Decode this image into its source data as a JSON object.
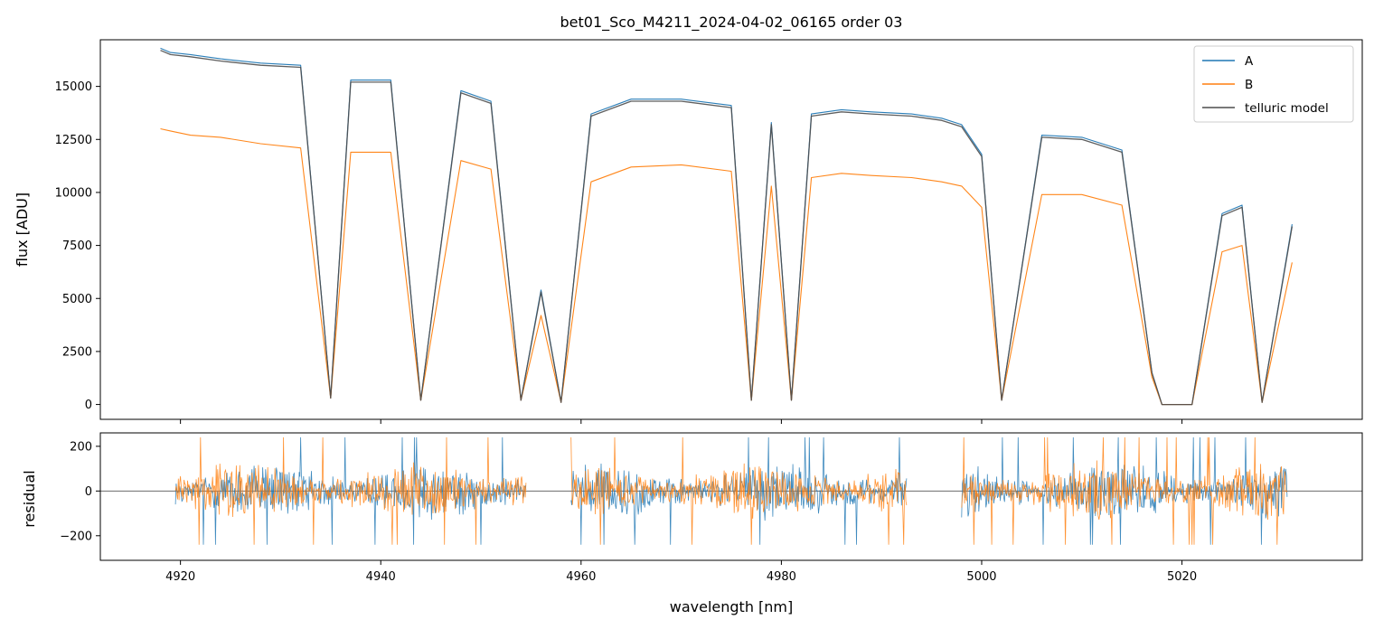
{
  "chart_data": [
    {
      "type": "line",
      "title": "bet01_Sco_M4211_2024-04-02_06165  order 03",
      "ylabel": "flux [ADU]",
      "xlim": [
        4912,
        5038
      ],
      "ylim": [
        -700,
        17200
      ],
      "yticks": [
        0,
        2500,
        5000,
        7500,
        10000,
        12500,
        15000
      ],
      "xticks": [
        4920,
        4940,
        4960,
        4980,
        5000,
        5020
      ],
      "legend_position": "top-right",
      "colors": {
        "A": "#1f77b4",
        "B": "#ff7f0e",
        "telluric": "#4d4d4d"
      },
      "series": [
        {
          "name": "A",
          "x": [
            4918,
            4919,
            4921,
            4924,
            4928,
            4932,
            4935,
            4937,
            4941,
            4944,
            4948,
            4951,
            4954,
            4956,
            4958,
            4961,
            4965,
            4970,
            4975,
            4977,
            4979,
            4981,
            4983,
            4986,
            4989,
            4993,
            4996,
            4998,
            5000,
            5002,
            5006,
            5010,
            5014,
            5017,
            5018,
            5021,
            5024,
            5026,
            5028,
            5031
          ],
          "y": [
            16800,
            16600,
            16500,
            16300,
            16100,
            16000,
            300,
            15300,
            15300,
            200,
            14800,
            14300,
            200,
            5400,
            100,
            13700,
            14400,
            14400,
            14100,
            200,
            13300,
            200,
            13700,
            13900,
            13800,
            13700,
            13500,
            13200,
            11800,
            200,
            12700,
            12600,
            12000,
            1500,
            0,
            0,
            9000,
            9400,
            100,
            8500
          ]
        },
        {
          "name": "B",
          "x": [
            4918,
            4919,
            4921,
            4924,
            4928,
            4932,
            4935,
            4937,
            4941,
            4944,
            4948,
            4951,
            4954,
            4956,
            4958,
            4961,
            4965,
            4970,
            4975,
            4977,
            4979,
            4981,
            4983,
            4986,
            4989,
            4993,
            4996,
            4998,
            5000,
            5002,
            5006,
            5010,
            5014,
            5017,
            5018,
            5021,
            5024,
            5026,
            5028,
            5031
          ],
          "y": [
            13000,
            12900,
            12700,
            12600,
            12300,
            12100,
            300,
            11900,
            11900,
            200,
            11500,
            11100,
            200,
            4200,
            100,
            10500,
            11200,
            11300,
            11000,
            200,
            10300,
            200,
            10700,
            10900,
            10800,
            10700,
            10500,
            10300,
            9300,
            200,
            9900,
            9900,
            9400,
            1300,
            0,
            0,
            7200,
            7500,
            100,
            6700
          ]
        },
        {
          "name": "telluric model",
          "x": [
            4918,
            4919,
            4921,
            4924,
            4928,
            4932,
            4935,
            4937,
            4941,
            4944,
            4948,
            4951,
            4954,
            4956,
            4958,
            4961,
            4965,
            4970,
            4975,
            4977,
            4979,
            4981,
            4983,
            4986,
            4989,
            4993,
            4996,
            4998,
            5000,
            5002,
            5006,
            5010,
            5014,
            5017,
            5018,
            5021,
            5024,
            5026,
            5028,
            5031
          ],
          "y": [
            16700,
            16500,
            16400,
            16200,
            16000,
            15900,
            300,
            15200,
            15200,
            200,
            14700,
            14200,
            200,
            5300,
            100,
            13600,
            14300,
            14300,
            14000,
            200,
            13200,
            200,
            13600,
            13800,
            13700,
            13600,
            13400,
            13100,
            11700,
            200,
            12600,
            12500,
            11900,
            1500,
            0,
            0,
            8900,
            9300,
            100,
            8400
          ]
        }
      ]
    },
    {
      "type": "line",
      "ylabel": "residual",
      "xlabel": "wavelength [nm]",
      "xlim": [
        4912,
        5038
      ],
      "ylim": [
        -310,
        260
      ],
      "yticks": [
        -200,
        0,
        200
      ],
      "xticks": [
        4920,
        4940,
        4960,
        4980,
        5000,
        5020
      ],
      "colors": {
        "A": "#1f77b4",
        "B": "#ff7f0e"
      },
      "series": [
        {
          "name": "A",
          "segments": [
            [
              4919.5,
              4954.5
            ],
            [
              4959,
              4992.5
            ],
            [
              4998,
              5030.5
            ]
          ]
        },
        {
          "name": "B",
          "segments": [
            [
              4919.5,
              4954.5
            ],
            [
              4959,
              4992.5
            ],
            [
              4998,
              5030.5
            ]
          ]
        }
      ]
    }
  ]
}
